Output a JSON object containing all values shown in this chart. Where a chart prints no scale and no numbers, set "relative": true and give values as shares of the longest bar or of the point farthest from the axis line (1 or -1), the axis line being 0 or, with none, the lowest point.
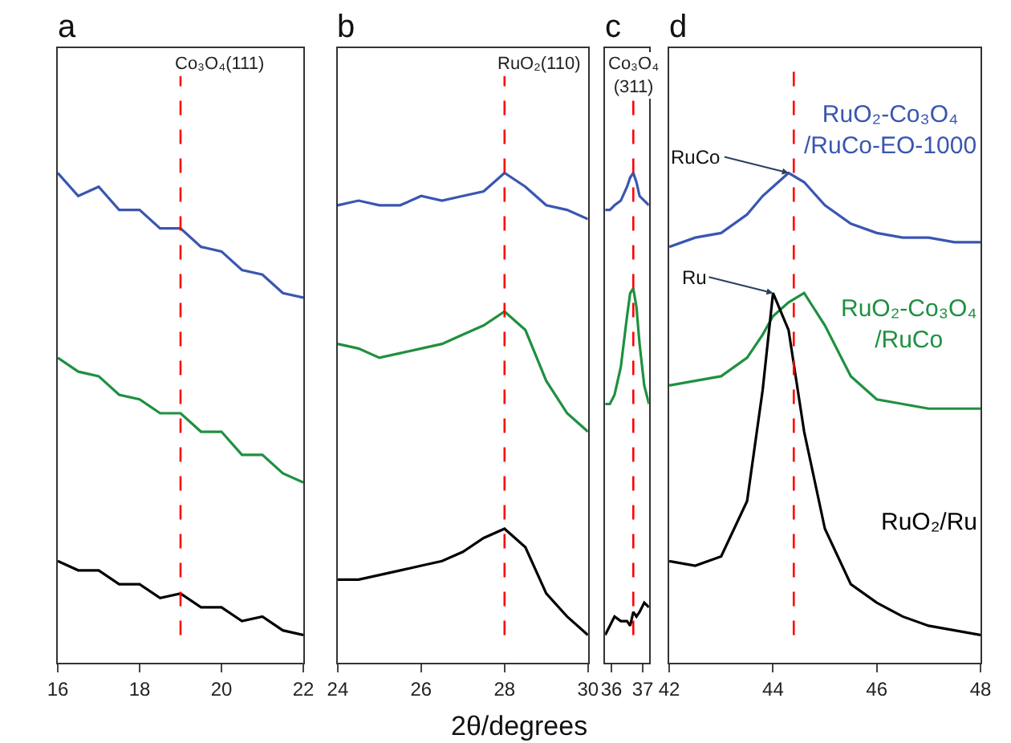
{
  "chart_data": [
    {
      "type": "line",
      "title": "a",
      "relative": true,
      "xlabel": "2θ/degrees",
      "x": [
        16,
        16.5,
        17,
        17.5,
        18,
        18.5,
        19,
        19.5,
        20,
        20.5,
        21,
        21.5,
        22
      ],
      "xlim": [
        16,
        22
      ],
      "xticks": [
        16,
        18,
        20,
        22
      ],
      "legend": false,
      "series": [
        {
          "color": "#3a56b0",
          "values": [
            1.0,
            0.95,
            0.97,
            0.92,
            0.92,
            0.88,
            0.88,
            0.84,
            0.83,
            0.79,
            0.78,
            0.74,
            0.73
          ]
        },
        {
          "color": "#1f9040",
          "values": [
            0.6,
            0.57,
            0.56,
            0.52,
            0.51,
            0.48,
            0.48,
            0.44,
            0.44,
            0.39,
            0.39,
            0.35,
            0.33
          ]
        },
        {
          "color": "#000000",
          "values": [
            0.16,
            0.14,
            0.14,
            0.11,
            0.11,
            0.08,
            0.09,
            0.06,
            0.06,
            0.03,
            0.04,
            0.01,
            0
          ]
        }
      ],
      "ref_lines": [
        {
          "axis": "x",
          "value": 19,
          "label": "Co₃O₄(111)",
          "color": "#ff0000",
          "line_style": "dashed"
        }
      ]
    },
    {
      "type": "line",
      "title": "b",
      "relative": true,
      "x": [
        24,
        24.5,
        25,
        25.5,
        26,
        26.5,
        27,
        27.5,
        28,
        28.5,
        29,
        29.5,
        30
      ],
      "xlim": [
        24,
        30
      ],
      "xticks": [
        24,
        26,
        28,
        30
      ],
      "legend": false,
      "series": [
        {
          "color": "#3a56b0",
          "values": [
            0.93,
            0.94,
            0.93,
            0.93,
            0.95,
            0.94,
            0.95,
            0.96,
            1.0,
            0.97,
            0.93,
            0.92,
            0.9
          ]
        },
        {
          "color": "#1f9040",
          "values": [
            0.63,
            0.62,
            0.6,
            0.61,
            0.62,
            0.63,
            0.65,
            0.67,
            0.7,
            0.66,
            0.55,
            0.48,
            0.44
          ]
        },
        {
          "color": "#000000",
          "values": [
            0.12,
            0.12,
            0.13,
            0.14,
            0.15,
            0.16,
            0.18,
            0.21,
            0.23,
            0.19,
            0.09,
            0.04,
            0
          ]
        }
      ],
      "ref_lines": [
        {
          "axis": "x",
          "value": 28,
          "label": "RuO₂(110)",
          "color": "#ff0000",
          "line_style": "dashed"
        }
      ]
    },
    {
      "type": "line",
      "title": "c",
      "relative": true,
      "x": [
        35.8,
        35.95,
        36.1,
        36.3,
        36.5,
        36.6,
        36.7,
        36.8,
        36.9,
        37.05,
        37.2
      ],
      "xlim": [
        35.8,
        37.2
      ],
      "xticks": [
        36,
        37
      ],
      "legend": false,
      "series": [
        {
          "color": "#3a56b0",
          "values": [
            0.92,
            0.92,
            0.93,
            0.94,
            0.97,
            0.99,
            1.0,
            0.98,
            0.95,
            0.94,
            0.93
          ]
        },
        {
          "color": "#1f9040",
          "values": [
            0.5,
            0.5,
            0.52,
            0.58,
            0.69,
            0.74,
            0.75,
            0.71,
            0.63,
            0.54,
            0.5
          ]
        },
        {
          "color": "#000000",
          "values": [
            0,
            0.02,
            0.04,
            0.03,
            0.03,
            0.02,
            0.05,
            0.04,
            0.05,
            0.07,
            0.06
          ]
        }
      ],
      "ref_lines": [
        {
          "axis": "x",
          "value": 36.7,
          "label": "Co₃O₄\n(311)",
          "color": "#ff0000",
          "line_style": "dashed"
        }
      ]
    },
    {
      "type": "line",
      "title": "d",
      "relative": true,
      "x": [
        42,
        42.5,
        43,
        43.5,
        43.8,
        44,
        44.3,
        44.6,
        45,
        45.5,
        46,
        46.5,
        47,
        47.5,
        48
      ],
      "xlim": [
        42,
        48
      ],
      "xticks": [
        42,
        44,
        46,
        48
      ],
      "legend": false,
      "series": [
        {
          "name": "RuO₂-Co₃O₄\n/RuCo-EO-1000",
          "color": "#3a56b0",
          "values": [
            0.84,
            0.86,
            0.87,
            0.91,
            0.95,
            0.97,
            1.0,
            0.98,
            0.93,
            0.89,
            0.87,
            0.86,
            0.86,
            0.85,
            0.85
          ]
        },
        {
          "name": "RuO₂-Co₃O₄\n/RuCo",
          "color": "#1f9040",
          "values": [
            0.54,
            0.55,
            0.56,
            0.6,
            0.65,
            0.69,
            0.72,
            0.74,
            0.67,
            0.56,
            0.51,
            0.5,
            0.49,
            0.49,
            0.49
          ]
        },
        {
          "name": "RuO₂/Ru",
          "color": "#000000",
          "values": [
            0.16,
            0.15,
            0.17,
            0.29,
            0.53,
            0.74,
            0.66,
            0.44,
            0.23,
            0.11,
            0.07,
            0.04,
            0.02,
            0.01,
            0
          ]
        }
      ],
      "ref_lines": [
        {
          "axis": "x",
          "value": 44.4,
          "color": "#ff0000",
          "line_style": "dashed"
        }
      ],
      "annotations": [
        {
          "text": "RuCo",
          "x": 44.3,
          "y": 1.0
        },
        {
          "text": "Ru",
          "x": 44.0,
          "y": 0.74
        }
      ]
    }
  ]
}
